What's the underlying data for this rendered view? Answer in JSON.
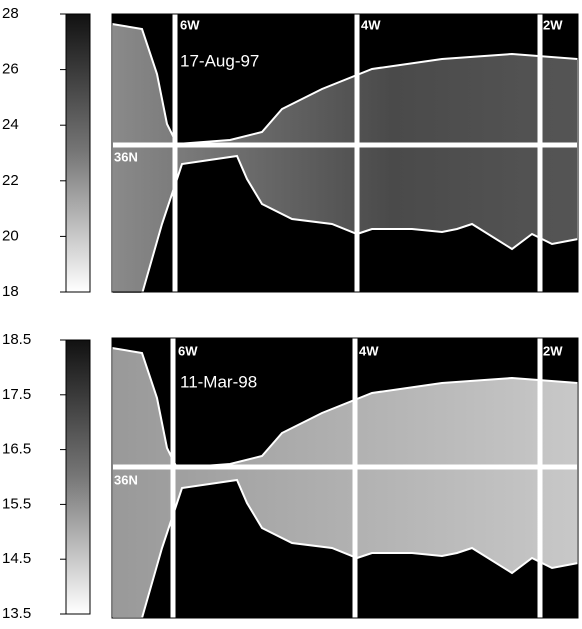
{
  "panels": [
    {
      "date": "17-Aug-97",
      "colorbar": {
        "lim": [
          18,
          28
        ],
        "ticks": [
          18,
          20,
          22,
          24,
          26,
          28
        ]
      },
      "lon_labels": [
        "6W",
        "4W",
        "2W"
      ],
      "lat_labels": [
        "36N"
      ]
    },
    {
      "date": "11-Mar-98",
      "colorbar": {
        "lim": [
          13.5,
          18.5
        ],
        "ticks": [
          13.5,
          14.5,
          15.5,
          16.5,
          17.5,
          18.5
        ]
      },
      "lon_labels": [
        "6W",
        "4W",
        "2W"
      ],
      "lat_labels": [
        "36N"
      ]
    }
  ]
}
